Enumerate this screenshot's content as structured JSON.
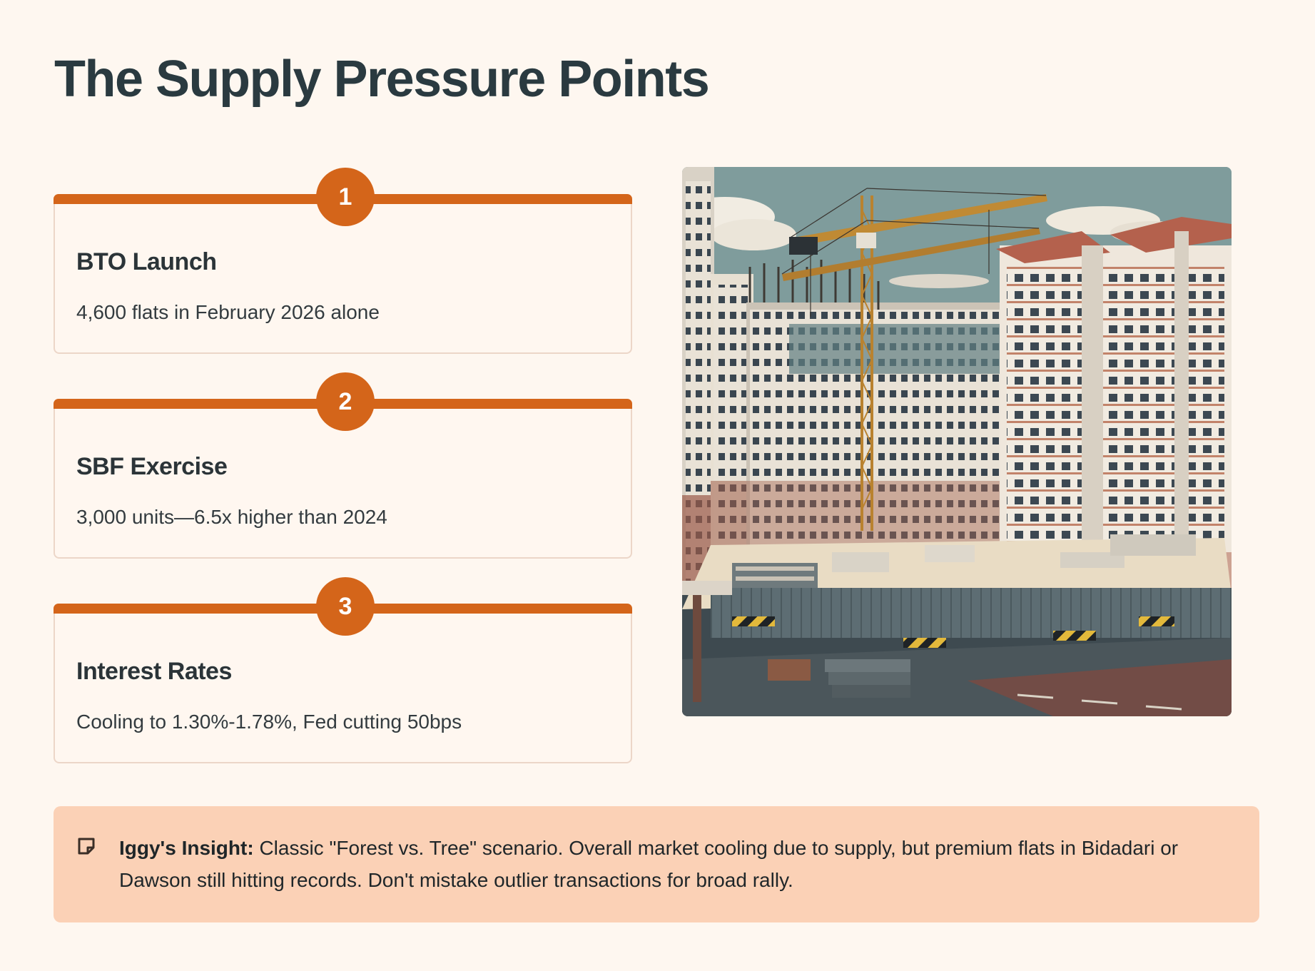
{
  "page": {
    "title": "The Supply Pressure Points"
  },
  "cards": [
    {
      "number": "1",
      "title": "BTO Launch",
      "text": "4,600 flats in February 2026 alone"
    },
    {
      "number": "2",
      "title": "SBF Exercise",
      "text": "3,000 units—6.5x higher than 2024"
    },
    {
      "number": "3",
      "title": "Interest Rates",
      "text": "Cooling to 1.30%-1.78%, Fed cutting 50bps"
    }
  ],
  "image": {
    "icon": "construction-site-illustration"
  },
  "insight": {
    "icon": "note-icon",
    "label": "Iggy's Insight:",
    "text": " Classic \"Forest vs. Tree\" scenario. Overall market cooling due to supply, but premium flats in Bidadari or Dawson still hitting records. Don't mistake outlier transactions for broad rally."
  },
  "colors": {
    "accent": "#d4651a",
    "background": "#fef7f0",
    "insight_background": "#fbd1b6",
    "title": "#2a3a40"
  }
}
